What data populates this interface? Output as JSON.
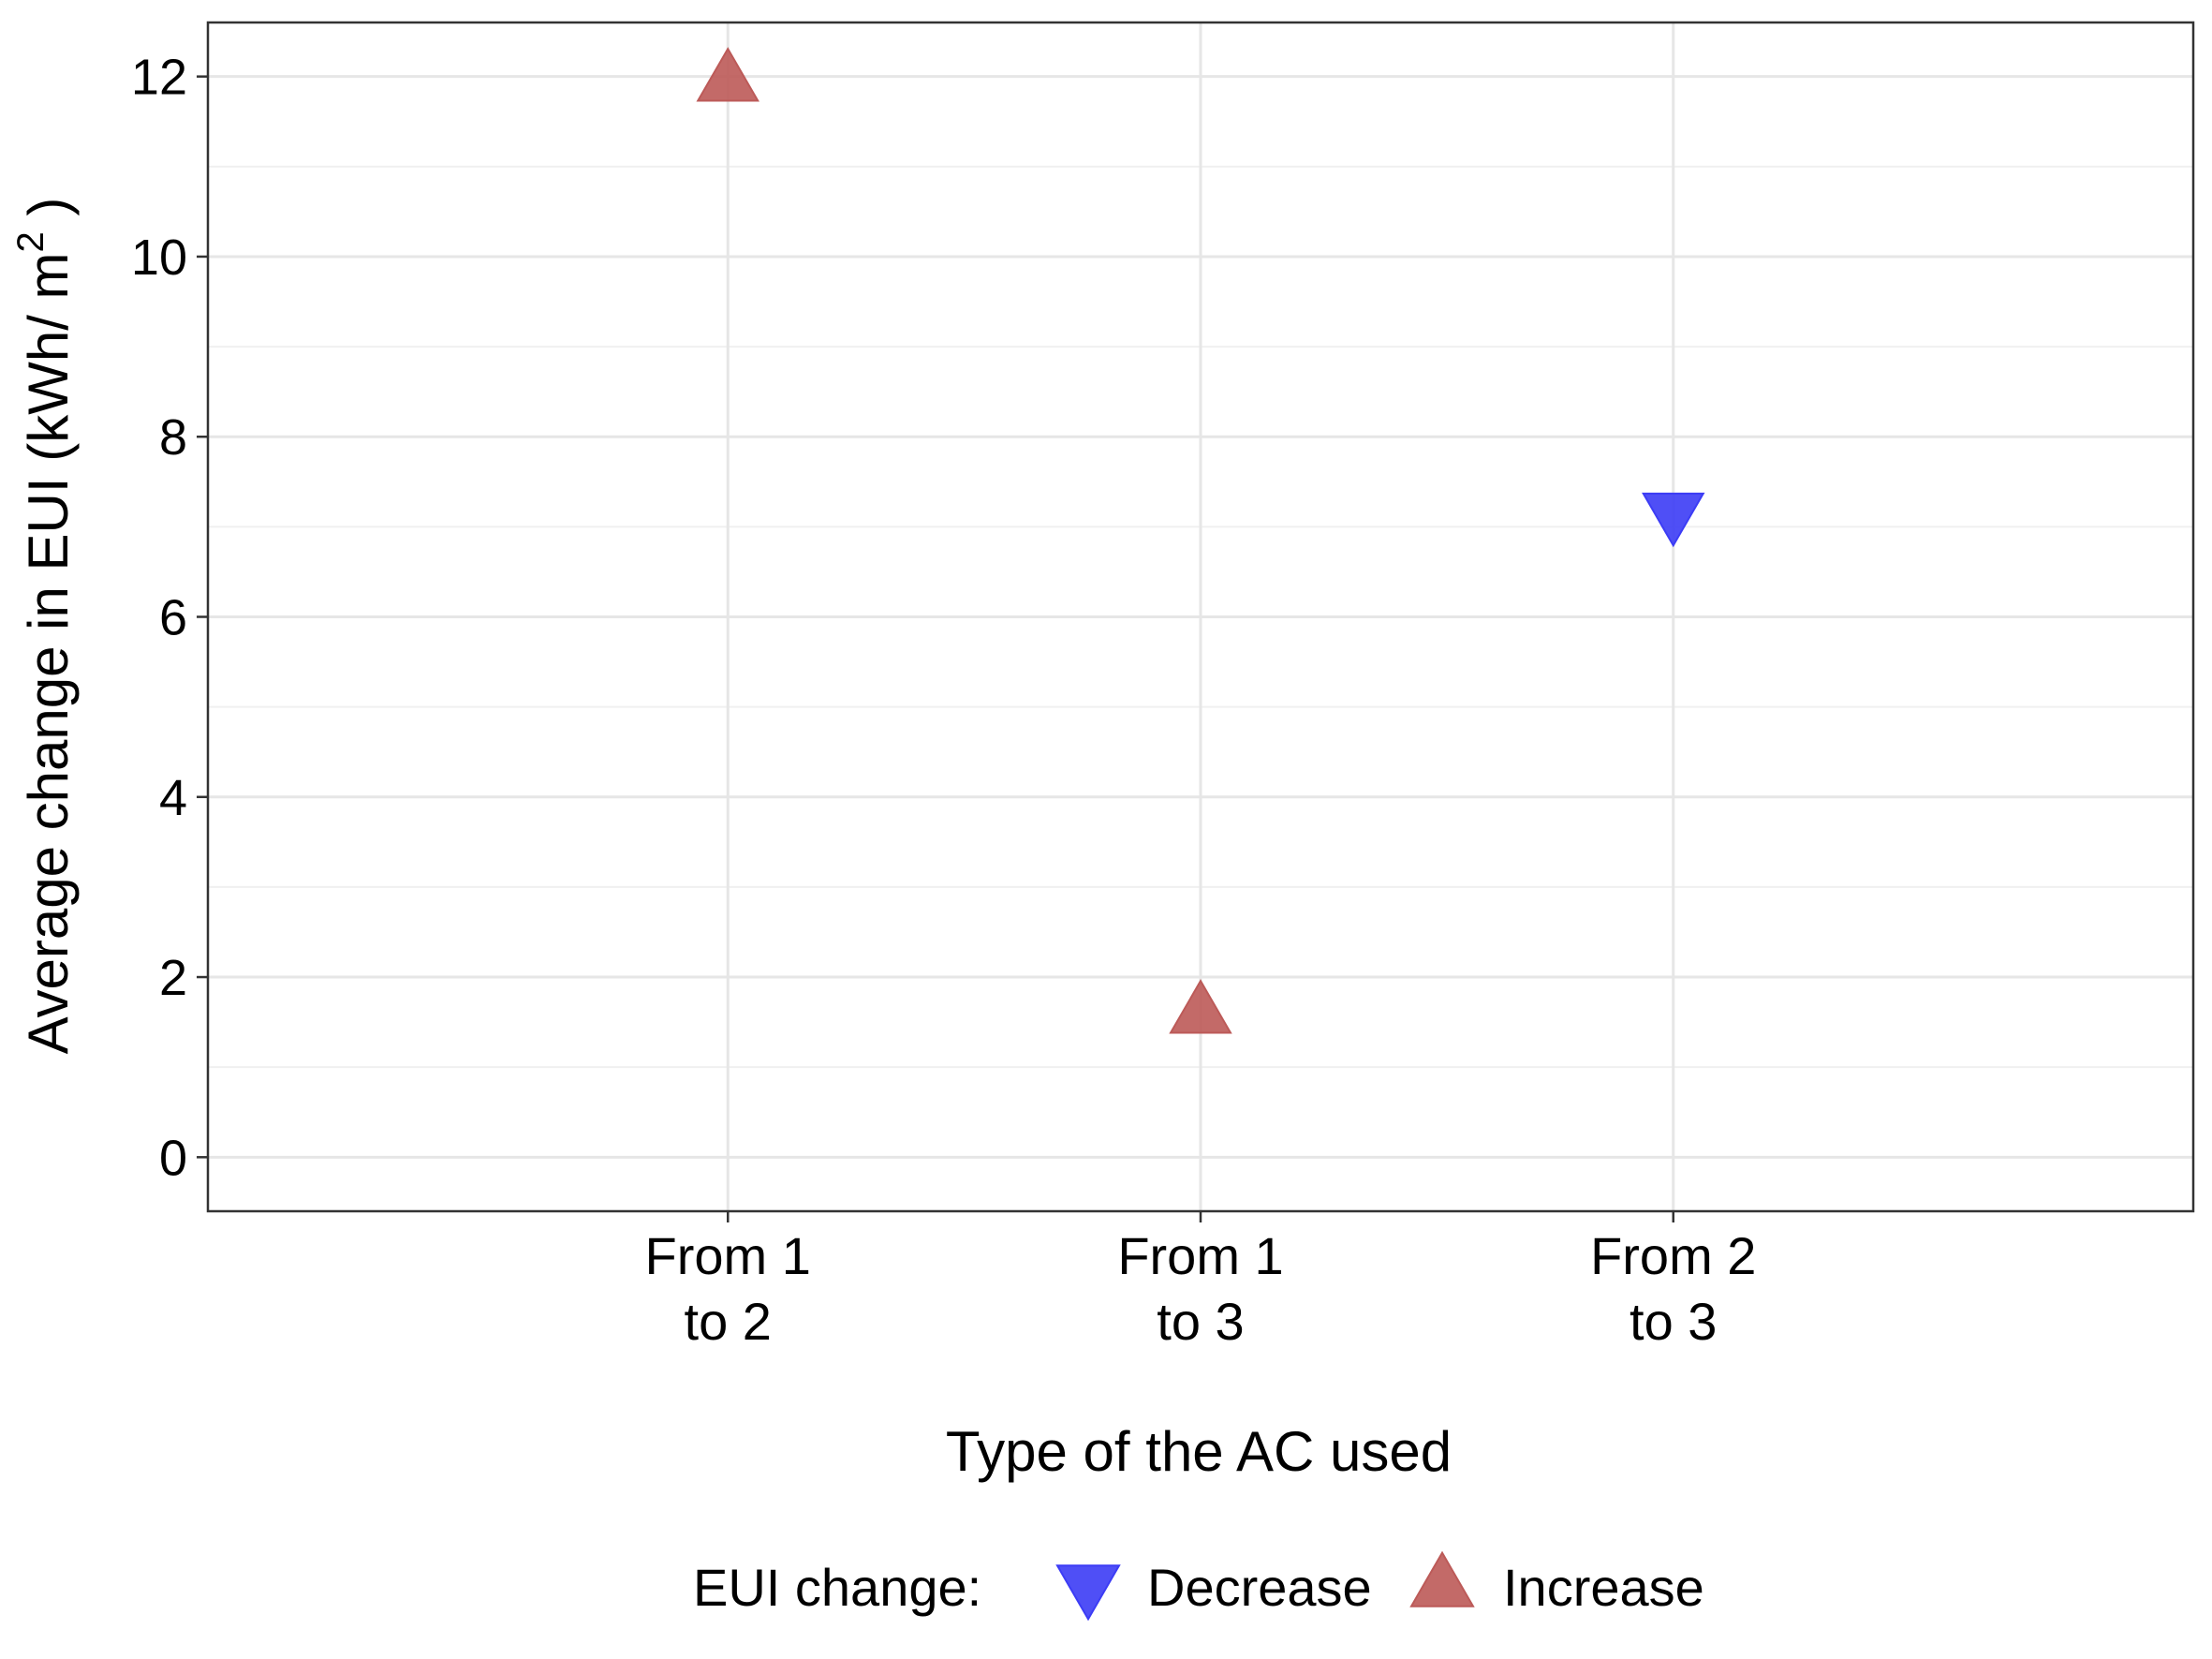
{
  "chart_data": {
    "type": "scatter",
    "xlabel": "Type of the AC used",
    "ylabel": "Average change in EUI (kWh/ m",
    "ylabel_superscript": "2",
    "ylabel_close": " )",
    "categories": [
      {
        "line1": "From 1",
        "line2": "to 2"
      },
      {
        "line1": "From 1",
        "line2": "to 3"
      },
      {
        "line1": "From 2",
        "line2": "to 3"
      }
    ],
    "yticks": [
      "0",
      "2",
      "4",
      "6",
      "8",
      "10",
      "12"
    ],
    "ylim": [
      -0.6,
      12.6
    ],
    "grid": true,
    "points": [
      {
        "category_index": 0,
        "y": 11.95,
        "change": "Increase"
      },
      {
        "category_index": 1,
        "y": 1.6,
        "change": "Increase"
      },
      {
        "category_index": 2,
        "y": 7.15,
        "change": "Decrease"
      }
    ],
    "legend": {
      "position": "bottom",
      "title": "EUI change:",
      "entries": [
        {
          "label": "Decrease",
          "shape": "triangle-down",
          "color": "#3c3cf5"
        },
        {
          "label": "Increase",
          "shape": "triangle-up",
          "color": "#bc5a58"
        }
      ]
    }
  }
}
